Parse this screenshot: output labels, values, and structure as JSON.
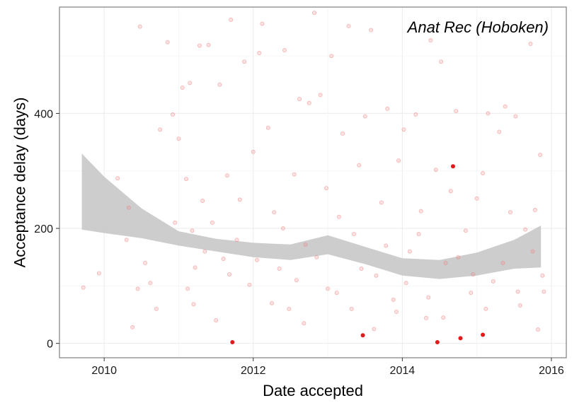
{
  "chart_data": {
    "type": "scatter",
    "title": "",
    "annotation": "Anat Rec (Hoboken)",
    "xlabel": "Date accepted",
    "ylabel": "Acceptance delay (days)",
    "xlim": [
      2009.4,
      2016.2
    ],
    "ylim": [
      -25,
      585
    ],
    "x_ticks": [
      2010,
      2012,
      2014,
      2016
    ],
    "y_ticks": [
      0,
      200,
      400
    ],
    "grid": true,
    "legend": "none",
    "colors": {
      "points_faint": "#f08080",
      "points_highlight": "#e31a1c",
      "ribbon": "#c8c8c8",
      "panel_border": "#7f7f7f",
      "gridline": "#ebebeb"
    },
    "highlighted_points": [
      {
        "x": 2011.72,
        "y": 2
      },
      {
        "x": 2013.47,
        "y": 14
      },
      {
        "x": 2014.47,
        "y": 2
      },
      {
        "x": 2014.68,
        "y": 308
      },
      {
        "x": 2014.78,
        "y": 9
      },
      {
        "x": 2015.08,
        "y": 15
      }
    ],
    "faint_points": [
      {
        "x": 2009.72,
        "y": 97
      },
      {
        "x": 2009.93,
        "y": 122
      },
      {
        "x": 2010.18,
        "y": 287
      },
      {
        "x": 2010.33,
        "y": 236
      },
      {
        "x": 2010.38,
        "y": 28
      },
      {
        "x": 2010.45,
        "y": 95
      },
      {
        "x": 2010.48,
        "y": 551
      },
      {
        "x": 2010.62,
        "y": 105
      },
      {
        "x": 2010.75,
        "y": 372
      },
      {
        "x": 2010.85,
        "y": 524
      },
      {
        "x": 2010.92,
        "y": 398
      },
      {
        "x": 2011.0,
        "y": 356
      },
      {
        "x": 2011.05,
        "y": 445
      },
      {
        "x": 2011.1,
        "y": 286
      },
      {
        "x": 2011.15,
        "y": 453
      },
      {
        "x": 2011.18,
        "y": 196
      },
      {
        "x": 2011.2,
        "y": 68
      },
      {
        "x": 2011.22,
        "y": 132
      },
      {
        "x": 2011.28,
        "y": 518
      },
      {
        "x": 2011.32,
        "y": 248
      },
      {
        "x": 2011.4,
        "y": 519
      },
      {
        "x": 2011.45,
        "y": 210
      },
      {
        "x": 2011.55,
        "y": 450
      },
      {
        "x": 2011.6,
        "y": 147
      },
      {
        "x": 2011.65,
        "y": 292
      },
      {
        "x": 2011.7,
        "y": 563
      },
      {
        "x": 2011.78,
        "y": 180
      },
      {
        "x": 2011.88,
        "y": 490
      },
      {
        "x": 2011.95,
        "y": 102
      },
      {
        "x": 2012.0,
        "y": 333
      },
      {
        "x": 2012.08,
        "y": 505
      },
      {
        "x": 2012.12,
        "y": 556
      },
      {
        "x": 2012.2,
        "y": 375
      },
      {
        "x": 2012.28,
        "y": 228
      },
      {
        "x": 2012.35,
        "y": 130
      },
      {
        "x": 2012.42,
        "y": 510
      },
      {
        "x": 2012.48,
        "y": 60
      },
      {
        "x": 2012.55,
        "y": 294
      },
      {
        "x": 2012.62,
        "y": 425
      },
      {
        "x": 2012.7,
        "y": 172
      },
      {
        "x": 2012.75,
        "y": 418
      },
      {
        "x": 2012.82,
        "y": 575
      },
      {
        "x": 2012.9,
        "y": 432
      },
      {
        "x": 2012.98,
        "y": 270
      },
      {
        "x": 2013.05,
        "y": 500
      },
      {
        "x": 2013.12,
        "y": 88
      },
      {
        "x": 2013.2,
        "y": 365
      },
      {
        "x": 2013.28,
        "y": 552
      },
      {
        "x": 2013.35,
        "y": 190
      },
      {
        "x": 2013.42,
        "y": 310
      },
      {
        "x": 2013.5,
        "y": 395
      },
      {
        "x": 2013.58,
        "y": 545
      },
      {
        "x": 2013.65,
        "y": 118
      },
      {
        "x": 2013.72,
        "y": 245
      },
      {
        "x": 2013.8,
        "y": 408
      },
      {
        "x": 2013.88,
        "y": 76
      },
      {
        "x": 2013.95,
        "y": 318
      },
      {
        "x": 2014.02,
        "y": 372
      },
      {
        "x": 2014.1,
        "y": 160
      },
      {
        "x": 2014.18,
        "y": 398
      },
      {
        "x": 2014.25,
        "y": 230
      },
      {
        "x": 2014.32,
        "y": 44
      },
      {
        "x": 2014.38,
        "y": 527
      },
      {
        "x": 2014.45,
        "y": 302
      },
      {
        "x": 2014.52,
        "y": 490
      },
      {
        "x": 2014.58,
        "y": 140
      },
      {
        "x": 2014.65,
        "y": 265
      },
      {
        "x": 2014.72,
        "y": 404
      },
      {
        "x": 2014.85,
        "y": 196
      },
      {
        "x": 2014.92,
        "y": 88
      },
      {
        "x": 2015.0,
        "y": 252
      },
      {
        "x": 2015.08,
        "y": 296
      },
      {
        "x": 2015.15,
        "y": 400
      },
      {
        "x": 2015.22,
        "y": 108
      },
      {
        "x": 2015.3,
        "y": 368
      },
      {
        "x": 2015.38,
        "y": 412
      },
      {
        "x": 2015.45,
        "y": 228
      },
      {
        "x": 2015.52,
        "y": 395
      },
      {
        "x": 2015.58,
        "y": 66
      },
      {
        "x": 2015.65,
        "y": 198
      },
      {
        "x": 2015.72,
        "y": 521
      },
      {
        "x": 2015.78,
        "y": 232
      },
      {
        "x": 2015.82,
        "y": 24
      },
      {
        "x": 2015.85,
        "y": 328
      },
      {
        "x": 2015.88,
        "y": 118
      },
      {
        "x": 2015.9,
        "y": 90
      },
      {
        "x": 2010.3,
        "y": 180
      },
      {
        "x": 2010.55,
        "y": 140
      },
      {
        "x": 2010.7,
        "y": 60
      },
      {
        "x": 2010.95,
        "y": 210
      },
      {
        "x": 2011.12,
        "y": 95
      },
      {
        "x": 2011.35,
        "y": 160
      },
      {
        "x": 2011.5,
        "y": 40
      },
      {
        "x": 2011.68,
        "y": 120
      },
      {
        "x": 2011.82,
        "y": 250
      },
      {
        "x": 2012.05,
        "y": 145
      },
      {
        "x": 2012.25,
        "y": 70
      },
      {
        "x": 2012.4,
        "y": 200
      },
      {
        "x": 2012.58,
        "y": 110
      },
      {
        "x": 2012.68,
        "y": 35
      },
      {
        "x": 2012.85,
        "y": 150
      },
      {
        "x": 2013.0,
        "y": 95
      },
      {
        "x": 2013.15,
        "y": 220
      },
      {
        "x": 2013.32,
        "y": 60
      },
      {
        "x": 2013.45,
        "y": 130
      },
      {
        "x": 2013.62,
        "y": 25
      },
      {
        "x": 2013.78,
        "y": 170
      },
      {
        "x": 2013.92,
        "y": 55
      },
      {
        "x": 2014.05,
        "y": 105
      },
      {
        "x": 2014.22,
        "y": 190
      },
      {
        "x": 2014.35,
        "y": 80
      },
      {
        "x": 2014.55,
        "y": 45
      },
      {
        "x": 2014.75,
        "y": 150
      },
      {
        "x": 2014.95,
        "y": 120
      },
      {
        "x": 2015.12,
        "y": 60
      },
      {
        "x": 2015.35,
        "y": 140
      },
      {
        "x": 2015.55,
        "y": 90
      },
      {
        "x": 2015.75,
        "y": 160
      }
    ],
    "smooth_ribbon": {
      "x": [
        2009.7,
        2010.0,
        2010.5,
        2011.0,
        2011.5,
        2012.0,
        2012.5,
        2013.0,
        2013.5,
        2014.0,
        2014.5,
        2015.0,
        2015.5,
        2015.86
      ],
      "upper": [
        330,
        290,
        235,
        195,
        182,
        175,
        172,
        188,
        168,
        148,
        145,
        158,
        180,
        205
      ],
      "lower": [
        198,
        192,
        183,
        170,
        160,
        150,
        145,
        155,
        138,
        118,
        112,
        118,
        130,
        132
      ]
    }
  }
}
